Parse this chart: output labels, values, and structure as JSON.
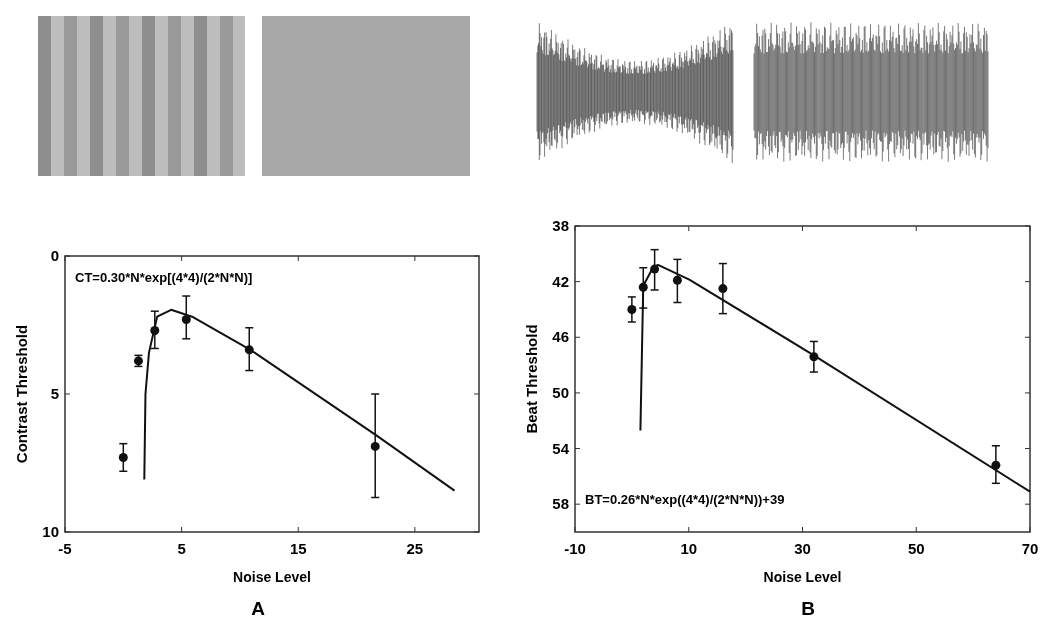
{
  "chart_data": [
    {
      "type": "scatter",
      "xlabel": "Noise Level",
      "ylabel": "Contrast Threshold",
      "xlim": [
        -5,
        30.5
      ],
      "ylim": [
        10,
        0
      ],
      "xticks": [
        -5,
        5,
        15,
        25
      ],
      "yticks": [
        0,
        5,
        10
      ],
      "grid": false,
      "annotations": [
        "CT=0.30*N*exp[(4*4)/(2*N*N)]",
        "A"
      ],
      "series": [
        {
          "type": "scatter",
          "marker": "circle",
          "color": "#111111",
          "x": [
            0,
            1.3,
            2.7,
            5.4,
            10.8,
            21.6
          ],
          "values": [
            7.3,
            3.8,
            2.7,
            2.3,
            3.4,
            6.9
          ],
          "errors": [
            [
              6.8,
              7.8
            ],
            [
              3.6,
              4.0
            ],
            [
              2.0,
              3.35
            ],
            [
              1.45,
              3.0
            ],
            [
              2.6,
              4.15
            ],
            [
              5.0,
              8.75
            ]
          ]
        },
        {
          "type": "line",
          "color": "#111111",
          "x": [
            1.8,
            1.9,
            2.2,
            2.9,
            4.1,
            5.9,
            10.9,
            21.7,
            28.4
          ],
          "values": [
            8.1,
            5.0,
            3.5,
            2.2,
            1.95,
            2.2,
            3.4,
            6.5,
            8.5
          ]
        }
      ]
    },
    {
      "type": "scatter",
      "xlabel": "Noise Level",
      "ylabel": "Beat Threshold",
      "xlim": [
        -10,
        70
      ],
      "ylim": [
        60,
        38
      ],
      "xticks": [
        -10,
        10,
        30,
        50,
        70
      ],
      "yticks": [
        38,
        42,
        46,
        50,
        54,
        58
      ],
      "grid": false,
      "annotations": [
        "BT=0.26*N*exp((4*4)/(2*N*N))+39",
        "B"
      ],
      "series": [
        {
          "type": "scatter",
          "marker": "circle",
          "color": "#111111",
          "x": [
            0,
            2,
            4,
            8,
            16,
            32,
            64
          ],
          "values": [
            44,
            42.4,
            41.1,
            41.9,
            42.5,
            47.4,
            55.2
          ],
          "errors": [
            [
              43.1,
              44.9
            ],
            [
              41.0,
              43.9
            ],
            [
              39.7,
              42.6
            ],
            [
              40.4,
              43.5
            ],
            [
              40.7,
              44.3
            ],
            [
              46.3,
              48.5
            ],
            [
              53.8,
              56.5
            ]
          ]
        },
        {
          "type": "line",
          "color": "#111111",
          "x": [
            1.5,
            2.0,
            3.7,
            4.6,
            10.1,
            32,
            70
          ],
          "values": [
            52.7,
            42.3,
            41.0,
            40.8,
            41.85,
            47.3,
            57.1
          ]
        }
      ]
    }
  ]
}
